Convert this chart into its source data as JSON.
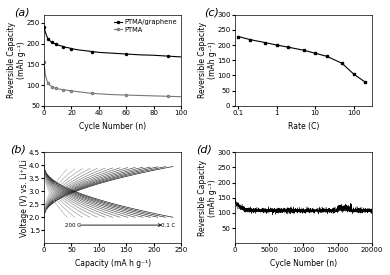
{
  "panel_a": {
    "label": "(a)",
    "ptma_graphene_x": [
      0,
      1,
      2,
      3,
      4,
      5,
      6,
      7,
      8,
      9,
      10,
      12,
      14,
      16,
      18,
      20,
      25,
      30,
      35,
      40,
      50,
      60,
      70,
      80,
      90,
      100
    ],
    "ptma_graphene_y": [
      240,
      228,
      218,
      212,
      208,
      205,
      203,
      201,
      200,
      199,
      197,
      195,
      193,
      191,
      190,
      188,
      185,
      183,
      181,
      179,
      177,
      175,
      173,
      172,
      170,
      168
    ],
    "ptma_x": [
      0,
      1,
      2,
      3,
      4,
      5,
      6,
      7,
      8,
      9,
      10,
      12,
      14,
      16,
      18,
      20,
      25,
      30,
      35,
      40,
      50,
      60,
      70,
      80,
      90,
      100
    ],
    "ptma_y": [
      155,
      125,
      112,
      106,
      101,
      98,
      96,
      94,
      93,
      92,
      91,
      90,
      89,
      88,
      87,
      86,
      84,
      82,
      80,
      79,
      77,
      76,
      75,
      74,
      73,
      72
    ],
    "xlabel": "Cycle Number (n)",
    "ylabel": "Reversible Capacity\n(mAh g⁻¹)",
    "legend1": "PTMA/graphene",
    "legend2": "PTMA",
    "xlim": [
      0,
      100
    ],
    "ylim": [
      50,
      270
    ],
    "yticks": [
      50,
      100,
      150,
      200,
      250
    ]
  },
  "panel_b": {
    "label": "(b)",
    "xlabel": "Capacity (mA h g⁻¹)",
    "ylabel": "Voltage (V) vs. Li⁺/Li",
    "xlim": [
      0,
      250
    ],
    "ylim": [
      1.0,
      4.5
    ],
    "yticks": [
      1.5,
      2.0,
      2.5,
      3.0,
      3.5,
      4.0,
      4.5
    ],
    "xticks": [
      0,
      50,
      100,
      150,
      200,
      250
    ],
    "n_curves": 15,
    "annotation_200c": "200 C",
    "annotation_01c": "0.1 C"
  },
  "panel_c": {
    "label": "(c)",
    "rates": [
      0.1,
      0.2,
      0.5,
      1,
      2,
      5,
      10,
      20,
      50,
      100,
      200
    ],
    "capacities": [
      228,
      218,
      208,
      200,
      193,
      183,
      173,
      163,
      140,
      105,
      78
    ],
    "xlabel": "Rate (C)",
    "ylabel": "Reversible Capacity\n(mAh g⁻¹)",
    "xlim": [
      0.08,
      300
    ],
    "ylim": [
      0,
      300
    ],
    "yticks": [
      0,
      50,
      100,
      150,
      200,
      250,
      300
    ]
  },
  "panel_d": {
    "label": "(d)",
    "xlabel": "Cycle Number (n)",
    "ylabel": "Reversible Capacity\n(mAh g⁻¹)",
    "xlim": [
      0,
      20000
    ],
    "ylim": [
      0,
      300
    ],
    "yticks": [
      50,
      100,
      150,
      200,
      250,
      300
    ],
    "xticks": [
      0,
      5000,
      10000,
      15000,
      20000
    ],
    "base_capacity": 108,
    "start_capacity": 140,
    "drop_cycles": 3000
  },
  "line_color": "#111111"
}
